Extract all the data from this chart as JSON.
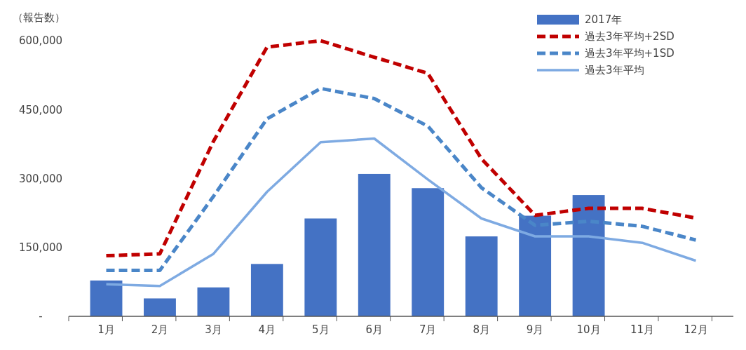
{
  "chart_data": {
    "type": "bar",
    "ylabel": "（報告数）",
    "categories": [
      "1月",
      "2月",
      "3月",
      "4月",
      "5月",
      "6月",
      "7月",
      "8月",
      "9月",
      "10月",
      "11月",
      "12月"
    ],
    "series": [
      {
        "name": "2017年",
        "color": "#4472c4",
        "values": [
          78000,
          39000,
          63000,
          114000,
          213000,
          310000,
          279000,
          174000,
          219000,
          264000,
          null,
          null
        ]
      },
      {
        "name": "過去3年平均+2SD",
        "type": "line",
        "line_style": "dashed",
        "color": "#c00000",
        "values": [
          132000,
          136000,
          381000,
          586000,
          600000,
          564000,
          529000,
          343000,
          220000,
          235000,
          235000,
          214000
        ]
      },
      {
        "name": "過去3年平均+1SD",
        "type": "line",
        "line_style": "dashed",
        "color": "#4a86c8",
        "values": [
          100000,
          100000,
          261000,
          430000,
          496000,
          474000,
          414000,
          280000,
          198000,
          207000,
          196000,
          166000
        ]
      },
      {
        "name": "過去3年平均",
        "type": "line",
        "line_style": "solid",
        "color": "#7eaae2",
        "values": [
          70000,
          66000,
          136000,
          271000,
          379000,
          387000,
          298000,
          213000,
          174000,
          174000,
          160000,
          121000
        ]
      }
    ],
    "ylim": [
      0,
      600000
    ],
    "yticks": [
      {
        "value": 0,
        "label": "-"
      },
      {
        "value": 150000,
        "label": "150,000"
      },
      {
        "value": 300000,
        "label": "300,000"
      },
      {
        "value": 450000,
        "label": "450,000"
      },
      {
        "value": 600000,
        "label": "600,000"
      }
    ],
    "grid": false,
    "legend": "top right"
  }
}
